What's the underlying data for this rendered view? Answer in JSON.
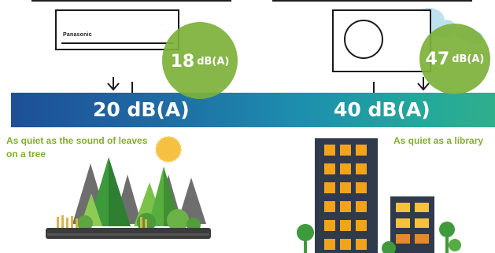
{
  "indoor_unit": {
    "brand": "Panasonic"
  },
  "indoor_bubble": {
    "value": "18",
    "unit": "dB(A)"
  },
  "outdoor_bubble": {
    "value": "47",
    "unit": "dB(A)"
  },
  "scale": {
    "left_label": "20 dB(A)",
    "right_label": "40 dB(A)"
  },
  "captions": {
    "left": "As quiet as the sound of leaves on a tree",
    "right": "As quiet as a library"
  },
  "colors": {
    "accent_green": "#82b02d",
    "bubble_green": "#7db03a",
    "band_start": "#1e4f98",
    "band_end": "#2faf8c"
  },
  "icons": {
    "indoor": "wall-air-conditioner",
    "outdoor": "outdoor-compressor-unit",
    "left_scene": "forest-with-sun",
    "right_scene": "city-buildings"
  }
}
